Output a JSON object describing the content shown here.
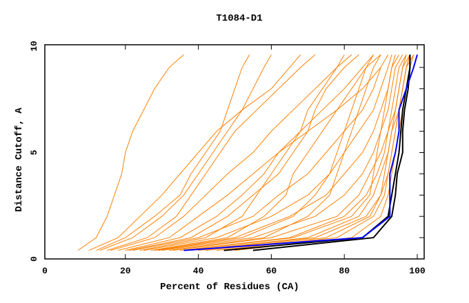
{
  "chart_data": {
    "type": "line",
    "title": "T1084-D1",
    "xlabel": "Percent of Residues (CA)",
    "ylabel": "Distance Cutoff, A",
    "xlim": [
      0,
      100
    ],
    "ylim": [
      0,
      10
    ],
    "xticks": [
      "0",
      "20",
      "40",
      "60",
      "80",
      "100"
    ],
    "yticks": [
      "0",
      "5",
      "10"
    ],
    "grid": false,
    "y_levels": [
      0.4,
      1,
      2,
      3,
      4,
      5,
      6,
      7,
      8,
      9,
      9.6
    ],
    "colors": {
      "models": "#ff7f00",
      "highlight_blue": "#0000ff",
      "highlight_black": "#000000"
    },
    "series_models": [
      [
        7,
        12,
        15,
        17,
        19,
        20,
        22,
        25,
        28,
        32,
        36
      ],
      [
        10,
        18,
        24,
        30,
        35,
        40,
        45,
        52,
        60,
        65,
        68
      ],
      [
        13,
        22,
        30,
        36,
        40,
        44,
        48,
        52,
        55,
        58,
        60
      ],
      [
        16,
        28,
        36,
        42,
        48,
        55,
        60,
        66,
        72,
        78,
        82
      ],
      [
        20,
        35,
        45,
        52,
        58,
        62,
        68,
        74,
        80,
        85,
        88
      ],
      [
        22,
        40,
        55,
        62,
        70,
        75,
        80,
        85,
        88,
        90,
        92
      ],
      [
        25,
        45,
        60,
        70,
        76,
        80,
        84,
        88,
        90,
        92,
        93
      ],
      [
        28,
        50,
        65,
        75,
        80,
        85,
        88,
        90,
        92,
        93,
        95
      ],
      [
        30,
        55,
        72,
        80,
        85,
        88,
        90,
        92,
        93,
        94,
        96
      ],
      [
        33,
        60,
        78,
        84,
        87,
        90,
        92,
        93,
        94,
        95,
        97
      ],
      [
        35,
        65,
        80,
        86,
        89,
        91,
        92,
        94,
        95,
        96,
        98
      ],
      [
        38,
        70,
        84,
        88,
        90,
        92,
        93,
        95,
        96,
        97,
        98
      ],
      [
        40,
        72,
        86,
        90,
        92,
        93,
        94,
        95,
        96,
        97,
        99
      ],
      [
        18,
        32,
        40,
        48,
        55,
        62,
        70,
        78,
        85,
        90,
        null
      ],
      [
        15,
        26,
        34,
        38,
        42,
        46,
        50,
        56,
        62,
        68,
        72
      ],
      [
        24,
        42,
        52,
        56,
        60,
        64,
        68,
        70,
        74,
        78,
        80
      ],
      [
        27,
        48,
        58,
        64,
        66,
        70,
        74,
        78,
        82,
        86,
        90
      ],
      [
        32,
        58,
        70,
        76,
        78,
        80,
        82,
        84,
        86,
        88,
        90
      ],
      [
        12,
        20,
        28,
        35,
        38,
        42,
        46,
        48,
        50,
        52,
        54
      ],
      [
        45,
        78,
        88,
        91,
        92,
        93,
        94,
        95,
        96,
        97,
        98
      ],
      [
        42,
        75,
        87,
        90,
        91,
        92,
        93,
        94,
        95,
        96,
        97
      ],
      [
        29,
        52,
        66,
        72,
        76,
        78,
        80,
        82,
        84,
        86,
        88
      ],
      [
        21,
        38,
        48,
        55,
        62,
        66,
        70,
        72,
        75,
        80,
        84
      ],
      [
        36,
        66,
        82,
        87,
        88,
        89,
        90,
        91,
        92,
        93,
        94
      ],
      [
        50,
        82,
        90,
        92,
        93,
        94,
        95,
        96,
        97,
        98,
        99
      ]
    ],
    "series_blue": [
      36,
      85,
      92.5,
      92.5,
      92.5,
      94,
      95,
      95,
      97,
      99,
      100
    ],
    "series_black": [
      [
        55,
        88,
        93,
        94,
        94.5,
        96,
        96,
        96.5,
        97.5,
        98,
        98
      ],
      [
        47,
        85,
        92,
        93,
        94,
        95,
        95.5,
        96,
        97,
        98,
        98
      ]
    ]
  }
}
